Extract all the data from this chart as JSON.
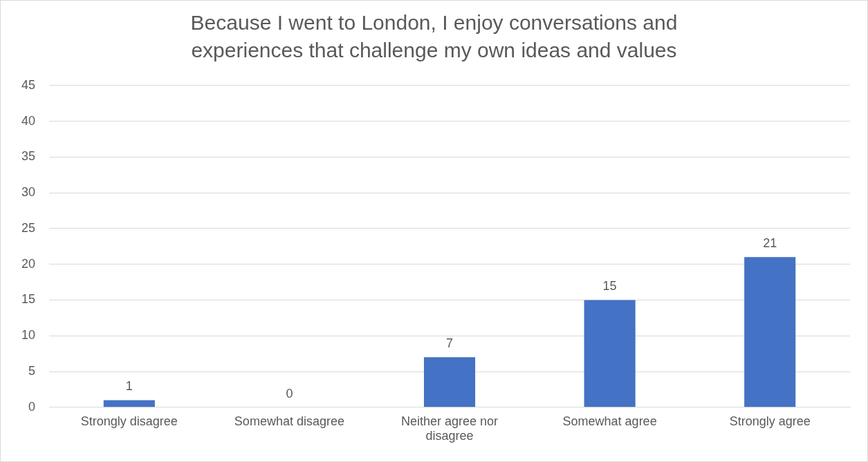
{
  "chart_data": {
    "type": "bar",
    "title": "Because I went to London, I enjoy conversations and experiences that challenge my own ideas and values",
    "categories": [
      "Strongly disagree",
      "Somewhat disagree",
      "Neither agree nor disagree",
      "Somewhat agree",
      "Strongly agree"
    ],
    "values": [
      1,
      0,
      7,
      15,
      21
    ],
    "color": "#4472c4",
    "ylim": [
      0,
      45
    ],
    "yticks": [
      0,
      5,
      10,
      15,
      20,
      25,
      30,
      35,
      40,
      45
    ],
    "grid": "y",
    "data_labels": true,
    "legend": false
  }
}
